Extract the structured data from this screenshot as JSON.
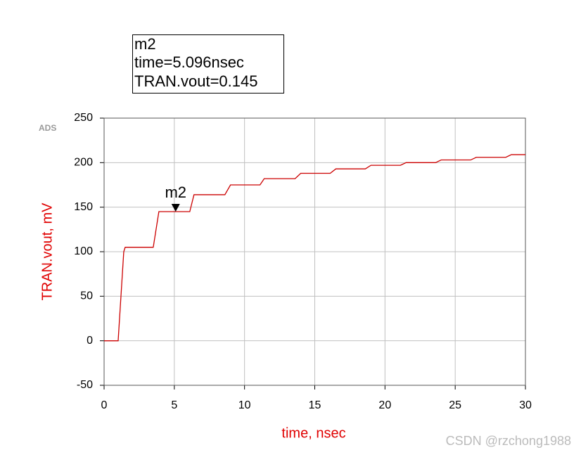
{
  "chart_data": {
    "type": "line",
    "logo": "ADS",
    "xlabel": "time, nsec",
    "ylabel": "TRAN.vout, mV",
    "xlim": [
      0,
      30
    ],
    "xticks": [
      0,
      5,
      10,
      15,
      20,
      25,
      30
    ],
    "ylim": [
      -50,
      250
    ],
    "yticks": [
      -50,
      0,
      50,
      100,
      150,
      200,
      250
    ],
    "grid": true,
    "series": [
      {
        "name": "TRAN.vout",
        "color": "#cc0000",
        "x": [
          0,
          1.0,
          1.4,
          1.5,
          3.5,
          3.9,
          6.1,
          6.4,
          8.6,
          9.0,
          11.1,
          11.4,
          13.6,
          14.0,
          16.1,
          16.5,
          18.6,
          19.0,
          21.1,
          21.5,
          23.6,
          24.0,
          26.1,
          26.5,
          28.6,
          29.0,
          30
        ],
        "values": [
          0,
          0,
          100,
          105,
          105,
          145,
          145,
          164,
          164,
          175,
          175,
          182,
          182,
          188,
          188,
          193,
          193,
          197,
          197,
          200,
          200,
          203,
          203,
          206,
          206,
          209,
          209
        ]
      }
    ],
    "marker": {
      "name": "m2",
      "x": 5.096,
      "y": 145,
      "readout": [
        "m2",
        "time=5.096nsec",
        "TRAN.vout=0.145"
      ]
    },
    "watermark": "CSDN @rzchong1988"
  }
}
